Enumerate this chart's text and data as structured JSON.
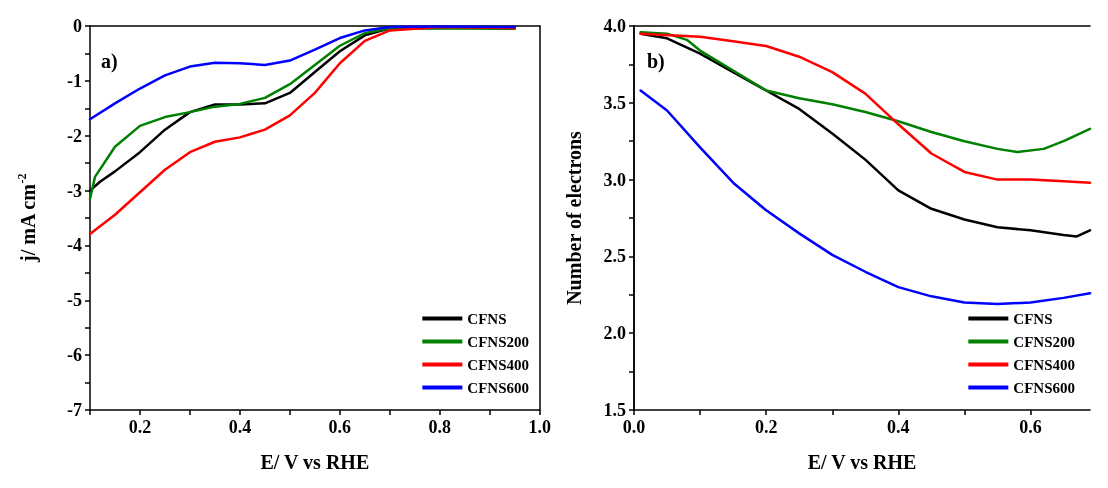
{
  "chart_data": [
    {
      "type": "line",
      "xlabel": "E/ V vs RHE",
      "ylabel": "j/ mA cm$^{-2}$",
      "annotations": [
        "a)"
      ],
      "xlim": [
        0.1,
        1.0
      ],
      "ylim": [
        -7,
        0
      ],
      "xticks": [
        {
          "value": 0.1,
          "label": null
        },
        0.2,
        {
          "value": 0.3,
          "label": null
        },
        0.4,
        {
          "value": 0.5,
          "label": null
        },
        0.6,
        {
          "value": 0.7,
          "label": null
        },
        0.8,
        {
          "value": 0.9,
          "label": null
        },
        {
          "value": 1.0,
          "label": "1.0"
        }
      ],
      "yticks": [
        -7,
        {
          "value": -6.5,
          "label": null
        },
        -6,
        {
          "value": -5.5,
          "label": null
        },
        -5,
        {
          "value": -4.5,
          "label": null
        },
        -4,
        {
          "value": -3.5,
          "label": null
        },
        -3,
        {
          "value": -2.5,
          "label": null
        },
        -2,
        {
          "value": -1.5,
          "label": null
        },
        -1,
        {
          "value": -0.5,
          "label": null
        },
        0
      ],
      "grid": false,
      "legend": "bottom right",
      "line_style": "solid",
      "marker": "none",
      "series": [
        {
          "name": "CFNS",
          "color": "#000000",
          "x": [
            0.1,
            0.12,
            0.15,
            0.2,
            0.25,
            0.3,
            0.35,
            0.4,
            0.45,
            0.5,
            0.55,
            0.6,
            0.65,
            0.7,
            0.95
          ],
          "values": [
            -3.0,
            -2.84,
            -2.65,
            -2.3,
            -1.89,
            -1.57,
            -1.43,
            -1.43,
            -1.41,
            -1.22,
            -0.84,
            -0.46,
            -0.17,
            -0.04,
            -0.02
          ]
        },
        {
          "name": "CFNS200",
          "color": "#008000",
          "x": [
            0.1,
            0.11,
            0.15,
            0.2,
            0.25,
            0.3,
            0.35,
            0.4,
            0.45,
            0.5,
            0.55,
            0.6,
            0.65,
            0.7,
            0.95
          ],
          "values": [
            -3.15,
            -2.75,
            -2.2,
            -1.82,
            -1.66,
            -1.57,
            -1.47,
            -1.42,
            -1.31,
            -1.06,
            -0.71,
            -0.36,
            -0.13,
            -0.04,
            -0.05
          ]
        },
        {
          "name": "CFNS400",
          "color": "#ff0000",
          "x": [
            0.1,
            0.15,
            0.2,
            0.25,
            0.3,
            0.35,
            0.4,
            0.45,
            0.5,
            0.55,
            0.6,
            0.65,
            0.7,
            0.8,
            0.95
          ],
          "values": [
            -3.79,
            -3.44,
            -3.03,
            -2.62,
            -2.3,
            -2.11,
            -2.03,
            -1.89,
            -1.63,
            -1.22,
            -0.68,
            -0.27,
            -0.08,
            -0.02,
            -0.04
          ]
        },
        {
          "name": "CFNS600",
          "color": "#0000ff",
          "x": [
            0.1,
            0.15,
            0.2,
            0.25,
            0.3,
            0.35,
            0.4,
            0.45,
            0.5,
            0.55,
            0.6,
            0.65,
            0.7,
            0.8,
            0.95
          ],
          "values": [
            -1.7,
            -1.41,
            -1.14,
            -0.9,
            -0.74,
            -0.67,
            -0.68,
            -0.71,
            -0.63,
            -0.43,
            -0.22,
            -0.08,
            -0.02,
            -0.01,
            -0.02
          ]
        }
      ]
    },
    {
      "type": "line",
      "xlabel": "E/ V vs RHE",
      "ylabel": "Number of electrons",
      "annotations": [
        "b)"
      ],
      "xlim": [
        0,
        0.69
      ],
      "ylim": [
        1.5,
        4.0
      ],
      "xticks": [
        {
          "value": 0,
          "label": "0.0"
        },
        {
          "value": 0.1,
          "label": null
        },
        0.2,
        {
          "value": 0.3,
          "label": null
        },
        0.4,
        {
          "value": 0.5,
          "label": null
        },
        0.6
      ],
      "yticks": [
        1.5,
        {
          "value": 1.75,
          "label": null
        },
        {
          "value": 2.0,
          "label": "2.0"
        },
        {
          "value": 2.25,
          "label": null
        },
        2.5,
        {
          "value": 2.75,
          "label": null
        },
        {
          "value": 3.0,
          "label": "3.0"
        },
        {
          "value": 3.25,
          "label": null
        },
        3.5,
        {
          "value": 3.75,
          "label": null
        },
        {
          "value": 4.0,
          "label": "4.0"
        }
      ],
      "grid": false,
      "legend": "bottom right",
      "line_style": "solid",
      "marker": "none",
      "series": [
        {
          "name": "CFNS",
          "color": "#000000",
          "x": [
            0.01,
            0.05,
            0.1,
            0.15,
            0.2,
            0.25,
            0.3,
            0.35,
            0.4,
            0.45,
            0.5,
            0.55,
            0.6,
            0.65,
            0.67,
            0.69
          ],
          "values": [
            3.95,
            3.92,
            3.82,
            3.7,
            3.58,
            3.46,
            3.3,
            3.13,
            2.93,
            2.81,
            2.74,
            2.69,
            2.67,
            2.64,
            2.63,
            2.67
          ]
        },
        {
          "name": "CFNS200",
          "color": "#008000",
          "x": [
            0.01,
            0.05,
            0.08,
            0.1,
            0.15,
            0.2,
            0.25,
            0.3,
            0.35,
            0.4,
            0.45,
            0.5,
            0.55,
            0.58,
            0.62,
            0.65,
            0.69
          ],
          "values": [
            3.96,
            3.95,
            3.91,
            3.84,
            3.71,
            3.58,
            3.53,
            3.49,
            3.44,
            3.38,
            3.31,
            3.25,
            3.2,
            3.18,
            3.2,
            3.25,
            3.33
          ]
        },
        {
          "name": "CFNS400",
          "color": "#ff0000",
          "x": [
            0.01,
            0.1,
            0.15,
            0.2,
            0.25,
            0.3,
            0.35,
            0.4,
            0.45,
            0.5,
            0.55,
            0.6,
            0.65,
            0.69
          ],
          "values": [
            3.95,
            3.93,
            3.9,
            3.87,
            3.8,
            3.7,
            3.56,
            3.36,
            3.17,
            3.05,
            3.0,
            3.0,
            2.99,
            2.98
          ]
        },
        {
          "name": "CFNS600",
          "color": "#0000ff",
          "x": [
            0.01,
            0.05,
            0.1,
            0.15,
            0.2,
            0.25,
            0.3,
            0.35,
            0.4,
            0.45,
            0.5,
            0.55,
            0.6,
            0.65,
            0.69
          ],
          "values": [
            3.58,
            3.45,
            3.21,
            2.98,
            2.8,
            2.65,
            2.51,
            2.4,
            2.3,
            2.24,
            2.2,
            2.19,
            2.2,
            2.23,
            2.26
          ]
        }
      ]
    }
  ]
}
